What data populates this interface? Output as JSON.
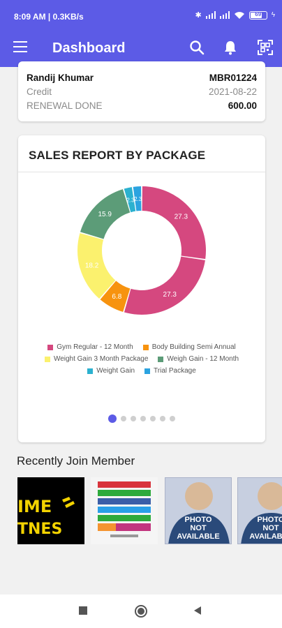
{
  "status_bar": {
    "time": "8:09 AM | 0.3KB/s",
    "battery": "69"
  },
  "app_bar": {
    "title": "Dashboard",
    "icons": [
      "menu-icon",
      "search-icon",
      "bell-icon",
      "qr-scan-icon"
    ]
  },
  "member": {
    "name": "Randij Khumar",
    "id": "MBR01224",
    "payment": "Credit",
    "date": "2021-08-22",
    "status": "RENEWAL DONE",
    "amount": "600.00"
  },
  "sales_report": {
    "title": "SALES REPORT BY PACKAGE",
    "page_count": 7,
    "active_page": 0
  },
  "chart_data": {
    "type": "pie",
    "title": "SALES REPORT BY PACKAGE",
    "donut": true,
    "series": [
      {
        "name": "Gym Regular - 12 Month",
        "value": 27.3,
        "color": "#d5487f"
      },
      {
        "name": "Gym Regular - 12 Month",
        "value": 27.3,
        "color": "#d5487f"
      },
      {
        "name": "Body Building Semi Annual",
        "value": 6.8,
        "color": "#f7930f"
      },
      {
        "name": "Weight Gain 3 Month Package",
        "value": 18.2,
        "color": "#fbf16e"
      },
      {
        "name": "Weigh Gain - 12 Month",
        "value": 15.9,
        "color": "#5c9c78"
      },
      {
        "name": "Weight Gain",
        "value": 2.3,
        "color": "#2bb1cf"
      },
      {
        "name": "Trial Package",
        "value": 2.3,
        "color": "#2ba3e0"
      }
    ],
    "data_labels": [
      "27.3",
      "27.3",
      "6.8",
      "18.2",
      "15.9",
      "2.3",
      "2.3"
    ],
    "legend": {
      "position": "bottom",
      "rows": [
        [
          {
            "label": "Gym Regular - 12 Month",
            "color": "#d5487f"
          },
          {
            "label": "Body Building Semi Annual",
            "color": "#f7930f"
          }
        ],
        [
          {
            "label": "Weight Gain 3 Month Package",
            "color": "#fbf16e"
          },
          {
            "label": "Weigh Gain - 12 Month",
            "color": "#5c9c78"
          }
        ],
        [
          {
            "label": "Weight Gain",
            "color": "#2bb1cf"
          },
          {
            "label": "Trial Package",
            "color": "#2ba3e0"
          }
        ]
      ]
    }
  },
  "recent": {
    "heading": "Recently Join Member",
    "thumb1_text": [
      "IME",
      "TNES"
    ],
    "photo_na_text": [
      "PHOTO",
      "NOT",
      "AVAILABLE"
    ]
  },
  "colors": {
    "primary": "#5c5be6",
    "background": "#f1f1f1"
  }
}
